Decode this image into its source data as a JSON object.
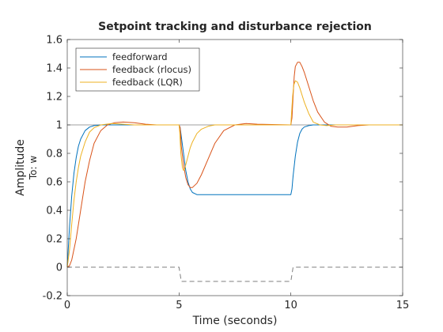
{
  "figure": {
    "background": "#ffffff"
  },
  "chart_data": {
    "type": "line",
    "title": "Setpoint tracking and disturbance rejection",
    "xlabel": "Time (seconds)",
    "ylabel": "Amplitude",
    "output_label": "To: w",
    "xlim": [
      0,
      15
    ],
    "ylim": [
      -0.2,
      1.6
    ],
    "xticks": [
      0,
      5,
      10,
      15
    ],
    "yticks": [
      -0.2,
      0,
      0.2,
      0.4,
      0.6,
      0.8,
      1,
      1.2,
      1.4,
      1.6
    ],
    "xtick_labels": [
      "0",
      "5",
      "10",
      "15"
    ],
    "ytick_labels": [
      "-0.2",
      "0",
      "0.2",
      "0.4",
      "0.6",
      "0.8",
      "1",
      "1.2",
      "1.4",
      "1.6"
    ],
    "grid": false,
    "legend_position": "top-left",
    "reference_line": {
      "y": 1,
      "color": "#7f7f7f"
    },
    "series": [
      {
        "name": "feedforward",
        "color": "#0072bd",
        "x": [
          0,
          0.1,
          0.2,
          0.3,
          0.4,
          0.5,
          0.6,
          0.8,
          1.0,
          1.2,
          1.5,
          5.0,
          5.05,
          5.1,
          5.2,
          5.3,
          5.4,
          5.5,
          5.6,
          5.8,
          10.0,
          10.05,
          10.1,
          10.2,
          10.3,
          10.4,
          10.5,
          10.6,
          10.8,
          11.0,
          11.2,
          15.0
        ],
        "y": [
          0,
          0.28,
          0.5,
          0.66,
          0.77,
          0.85,
          0.9,
          0.96,
          0.985,
          0.995,
          1.0,
          1.0,
          0.98,
          0.92,
          0.8,
          0.68,
          0.6,
          0.55,
          0.525,
          0.51,
          0.51,
          0.55,
          0.64,
          0.78,
          0.88,
          0.94,
          0.97,
          0.985,
          0.995,
          1.0,
          1.0,
          1.0
        ]
      },
      {
        "name": "feedback (rlocus)",
        "color": "#d95319",
        "x": [
          0,
          0.1,
          0.2,
          0.4,
          0.6,
          0.8,
          1.0,
          1.2,
          1.5,
          1.8,
          2.1,
          2.5,
          3.0,
          3.5,
          4.0,
          5.0,
          5.05,
          5.1,
          5.2,
          5.3,
          5.4,
          5.5,
          5.6,
          5.8,
          6.0,
          6.3,
          6.6,
          7.0,
          7.5,
          8.0,
          8.5,
          10.0,
          10.05,
          10.1,
          10.15,
          10.2,
          10.3,
          10.4,
          10.5,
          10.6,
          10.8,
          11.0,
          11.2,
          11.5,
          11.8,
          12.1,
          12.5,
          13.0,
          13.5,
          15.0
        ],
        "y": [
          0,
          0.01,
          0.05,
          0.2,
          0.4,
          0.6,
          0.75,
          0.87,
          0.96,
          1.0,
          1.015,
          1.02,
          1.015,
          1.005,
          1.0,
          1.0,
          0.98,
          0.85,
          0.72,
          0.63,
          0.58,
          0.56,
          0.56,
          0.59,
          0.65,
          0.76,
          0.87,
          0.96,
          1.0,
          1.01,
          1.005,
          1.0,
          1.05,
          1.2,
          1.34,
          1.41,
          1.44,
          1.44,
          1.41,
          1.37,
          1.27,
          1.17,
          1.09,
          1.02,
          0.99,
          0.985,
          0.985,
          0.995,
          1.0,
          1.0
        ]
      },
      {
        "name": "feedback (LQR)",
        "color": "#edb120",
        "x": [
          0,
          0.1,
          0.2,
          0.3,
          0.4,
          0.5,
          0.6,
          0.8,
          1.0,
          1.2,
          1.5,
          2.0,
          2.5,
          3.0,
          5.0,
          5.03,
          5.08,
          5.15,
          5.2,
          5.25,
          5.3,
          5.4,
          5.5,
          5.6,
          5.8,
          6.0,
          6.3,
          6.6,
          7.0,
          10.0,
          10.03,
          10.08,
          10.13,
          10.2,
          10.3,
          10.4,
          10.6,
          10.8,
          11.0,
          11.3,
          11.6,
          12.0,
          15.0
        ],
        "y": [
          0,
          0.12,
          0.3,
          0.47,
          0.6,
          0.7,
          0.78,
          0.88,
          0.95,
          0.98,
          1.0,
          1.01,
          1.005,
          1.0,
          1.0,
          0.95,
          0.8,
          0.7,
          0.68,
          0.69,
          0.72,
          0.78,
          0.84,
          0.88,
          0.94,
          0.97,
          0.99,
          1.0,
          1.0,
          1.0,
          1.08,
          1.2,
          1.28,
          1.31,
          1.3,
          1.26,
          1.16,
          1.08,
          1.02,
          1.0,
          0.995,
          1.0,
          1.0
        ]
      },
      {
        "color": "#7f7f7f",
        "dashed": true,
        "x": [
          0,
          5.0,
          5.1,
          10.0,
          10.1,
          15.0
        ],
        "y": [
          0,
          0,
          -0.1,
          -0.1,
          0,
          0
        ]
      }
    ]
  }
}
